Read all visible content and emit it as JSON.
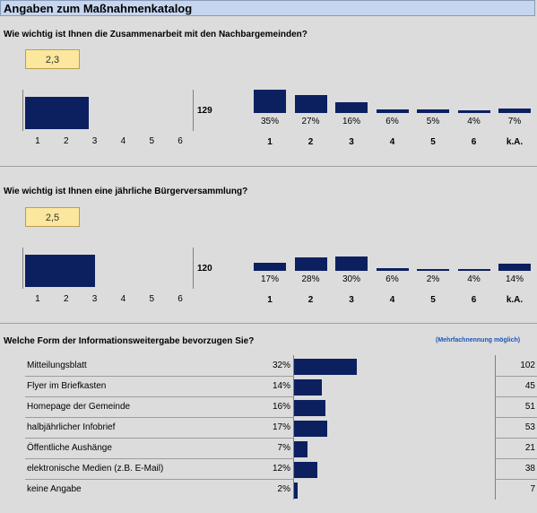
{
  "header": {
    "title": "Angaben zum Maßnahmenkatalog"
  },
  "section1": {
    "question": "Wie wichtig ist Ihnen die Zusammenarbeit mit den Nachbargemeinden?",
    "mean_label": "2,3",
    "n": "129",
    "scale_ticks": [
      "1",
      "2",
      "3",
      "4",
      "5",
      "6"
    ]
  },
  "section2": {
    "question": "Wie wichtig ist Ihnen eine jährliche Bürgerversammlung?",
    "mean_label": "2,5",
    "n": "120",
    "scale_ticks": [
      "1",
      "2",
      "3",
      "4",
      "5",
      "6"
    ]
  },
  "section3": {
    "question": "Welche Form der Informationsweitergabe bevorzugen Sie?",
    "note": "(Mehrfachnennung möglich)"
  },
  "chart_data": [
    {
      "type": "bar",
      "title": "Wie wichtig ist Ihnen die Zusammenarbeit mit den Nachbargemeinden?",
      "mean": 2.3,
      "n": 129,
      "categories": [
        "1",
        "2",
        "3",
        "4",
        "5",
        "6",
        "k.A."
      ],
      "values": [
        35,
        27,
        16,
        6,
        5,
        4,
        7
      ],
      "labels": [
        "35%",
        "27%",
        "16%",
        "6%",
        "5%",
        "4%",
        "7%"
      ],
      "mean_scale": [
        1,
        6
      ]
    },
    {
      "type": "bar",
      "title": "Wie wichtig ist Ihnen eine jährliche Bürgerversammlung?",
      "mean": 2.5,
      "n": 120,
      "categories": [
        "1",
        "2",
        "3",
        "4",
        "5",
        "6",
        "k.A."
      ],
      "values": [
        17,
        28,
        30,
        6,
        2,
        4,
        14
      ],
      "labels": [
        "17%",
        "28%",
        "30%",
        "6%",
        "2%",
        "4%",
        "14%"
      ],
      "mean_scale": [
        1,
        6
      ]
    },
    {
      "type": "bar",
      "orientation": "horizontal",
      "title": "Welche Form der Informationsweitergabe bevorzugen Sie?",
      "categories": [
        "Mitteilungsblatt",
        "Flyer im Briefkasten",
        "Homepage der Gemeinde",
        "halbjährlicher Infobrief",
        "Öffentliche Aushänge",
        "elektronische Medien (z.B. E-Mail)",
        "keine Angabe"
      ],
      "values": [
        32,
        14,
        16,
        17,
        7,
        12,
        2
      ],
      "pct_labels": [
        "32%",
        "14%",
        "16%",
        "17%",
        "7%",
        "12%",
        "2%"
      ],
      "counts": [
        102,
        45,
        51,
        53,
        21,
        38,
        7
      ],
      "count_labels": [
        "102",
        "45",
        "51",
        "53",
        "21",
        "38",
        "7"
      ]
    }
  ]
}
